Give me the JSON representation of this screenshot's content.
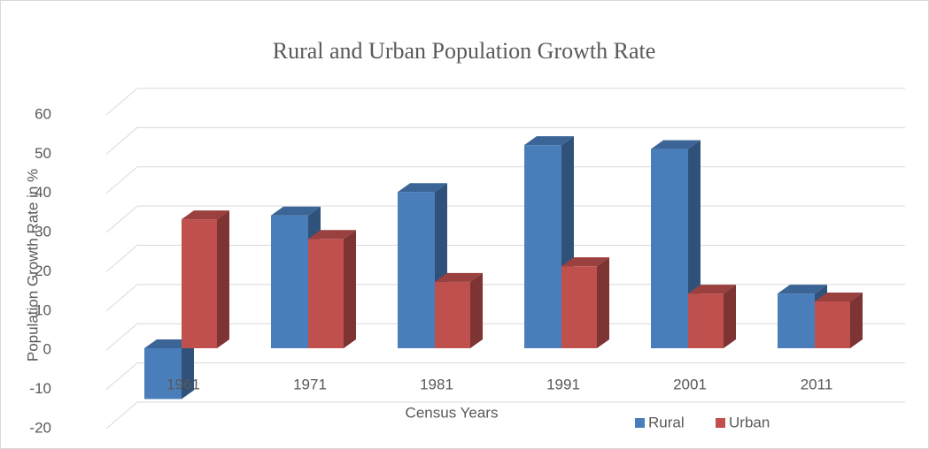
{
  "chart_data": {
    "type": "bar",
    "title": "Rural and Urban Population Growth Rate",
    "x_label": "Census  Years",
    "y_label": "Population Growth Rate in %",
    "categories": [
      "1961",
      "1971",
      "1981",
      "1991",
      "2001",
      "2011"
    ],
    "series": [
      {
        "name": "Rural",
        "color": "#4a7ebb",
        "values": [
          -13,
          34,
          40,
          52,
          51,
          14
        ]
      },
      {
        "name": "Urban",
        "color": "#c0504d",
        "values": [
          33,
          28,
          17,
          21,
          14,
          12
        ]
      }
    ],
    "ylim": [
      -20,
      60
    ],
    "yticks": [
      -20,
      -10,
      0,
      10,
      20,
      30,
      40,
      50,
      60
    ],
    "grid": true
  }
}
